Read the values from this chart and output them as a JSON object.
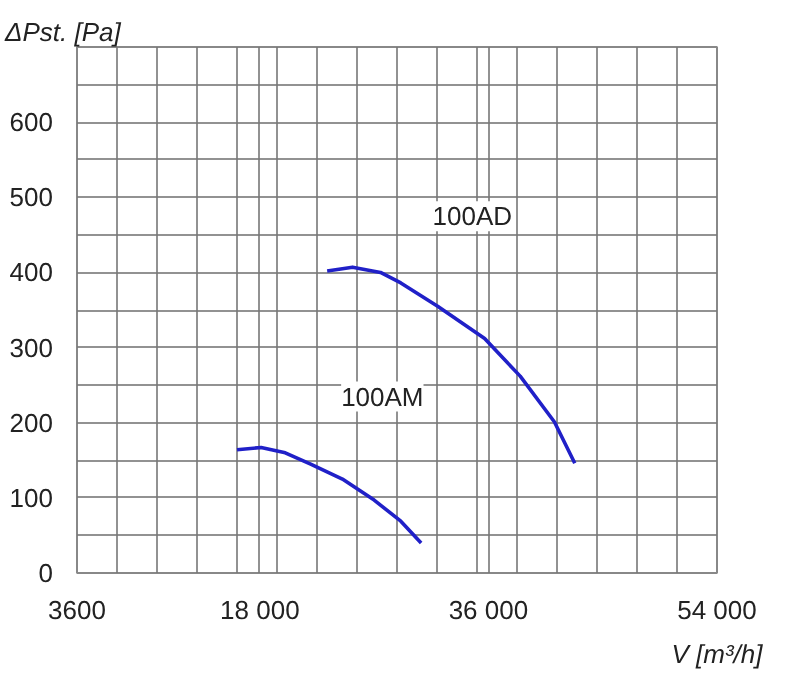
{
  "chart_data": {
    "type": "line",
    "xlabel": "V [m³/h]",
    "ylabel": "ΔPst. [Pa]",
    "xlim": [
      3600,
      54000
    ],
    "ylim": [
      0,
      700
    ],
    "xticks": [
      3600,
      {
        "value": 6750,
        "label": null
      },
      {
        "value": 9900,
        "label": null
      },
      {
        "value": 13050,
        "label": null
      },
      {
        "value": 16200,
        "label": null
      },
      18000,
      {
        "value": 19350,
        "label": null
      },
      {
        "value": 22500,
        "label": null
      },
      {
        "value": 25650,
        "label": null
      },
      {
        "value": 28800,
        "label": null
      },
      {
        "value": 31950,
        "label": null
      },
      {
        "value": 35100,
        "label": null
      },
      36000,
      {
        "value": 38250,
        "label": null
      },
      {
        "value": 41400,
        "label": null
      },
      {
        "value": 44550,
        "label": null
      },
      {
        "value": 47700,
        "label": null
      },
      {
        "value": 50850,
        "label": null
      },
      54000
    ],
    "yticks": [
      0,
      {
        "value": 50,
        "label": null
      },
      100,
      {
        "value": 150,
        "label": null
      },
      200,
      {
        "value": 250,
        "label": null
      },
      300,
      {
        "value": 350,
        "label": null
      },
      400,
      {
        "value": 450,
        "label": null
      },
      500,
      {
        "value": 550,
        "label": null
      },
      600,
      {
        "value": 650,
        "label": null
      },
      {
        "value": 700,
        "label": null
      }
    ],
    "grid": true,
    "marker": "none",
    "line_style": "solid",
    "series": [
      {
        "name": "100AD",
        "color": "#2020c8",
        "x": [
          23300,
          25300,
          27500,
          29100,
          32000,
          35700,
          38500,
          41200,
          42800
        ],
        "values": [
          402,
          407,
          400,
          386,
          355,
          312,
          262,
          201,
          146
        ]
      },
      {
        "name": "100AM",
        "color": "#2020c8",
        "x": [
          16200,
          18100,
          20000,
          22000,
          24500,
          27000,
          29100,
          30700
        ],
        "values": [
          164,
          167,
          160,
          145,
          125,
          97,
          69,
          40
        ]
      }
    ]
  }
}
